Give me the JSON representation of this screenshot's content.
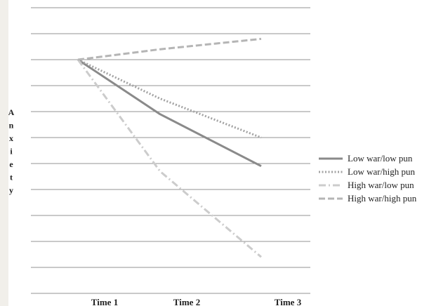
{
  "chart_data": {
    "type": "line",
    "title": "",
    "xlabel": "",
    "ylabel": "Anxiety",
    "categories": [
      "Time 1",
      "Time 2",
      "Time 3"
    ],
    "ylim": [
      0,
      11
    ],
    "grid": true,
    "legend_position": "right",
    "series": [
      {
        "name": "Low war/low pun",
        "values": [
          9.0,
          6.9,
          4.9
        ],
        "color": "#8a8a8a",
        "style": "solid"
      },
      {
        "name": "Low war/high pun",
        "values": [
          9.0,
          7.5,
          6.0
        ],
        "color": "#a3a3a3",
        "style": "dotted"
      },
      {
        "name": "High war/low pun",
        "values": [
          9.0,
          4.7,
          1.4
        ],
        "color": "#cccccc",
        "style": "dashdot"
      },
      {
        "name": "High war/high pun",
        "values": [
          9.0,
          9.4,
          9.8
        ],
        "color": "#b5b5b5",
        "style": "dashed"
      }
    ]
  }
}
